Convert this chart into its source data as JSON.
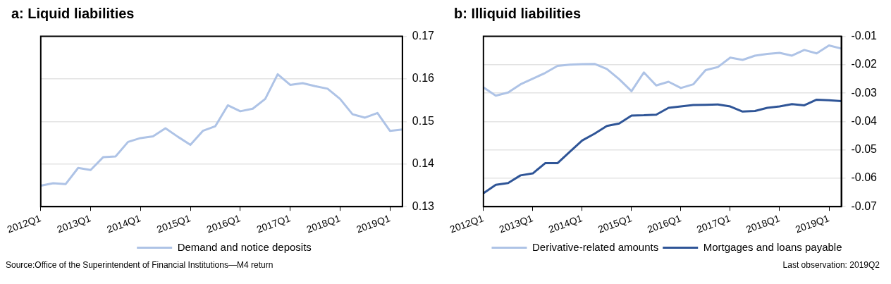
{
  "chart_data": [
    {
      "type": "line",
      "title": "a: Liquid liabilities",
      "categories": [
        "2012Q1",
        null,
        null,
        null,
        "2013Q1",
        null,
        null,
        null,
        "2014Q1",
        null,
        null,
        null,
        "2015Q1",
        null,
        null,
        null,
        "2016Q1",
        null,
        null,
        null,
        "2017Q1",
        null,
        null,
        null,
        "2018Q1",
        null,
        null,
        null,
        "2019Q1",
        null
      ],
      "series": [
        {
          "name": "Demand and notice deposits",
          "color": "#aec3e6",
          "values": [
            0.1349,
            0.1355,
            0.1353,
            0.1391,
            0.1386,
            0.1416,
            0.1418,
            0.1452,
            0.1461,
            0.1465,
            0.1484,
            0.1464,
            0.1445,
            0.1478,
            0.1489,
            0.1538,
            0.1524,
            0.153,
            0.1553,
            0.1611,
            0.1586,
            0.159,
            0.1583,
            0.1577,
            0.1553,
            0.1517,
            0.1509,
            0.152,
            0.1478,
            0.1481
          ]
        }
      ],
      "ylim": [
        0.13,
        0.17
      ],
      "yticks": [
        0.13,
        0.14,
        0.15,
        0.16,
        0.17
      ],
      "grid": "y",
      "legend": "bottom",
      "marker": "none",
      "line_style": "solid",
      "annotations": [
        "Source:Office of the Superintendent of Financial Institutions—M4 return"
      ]
    },
    {
      "type": "line",
      "title": "b: Illiquid liabilities",
      "categories": [
        "2012Q1",
        null,
        null,
        null,
        "2013Q1",
        null,
        null,
        null,
        "2014Q1",
        null,
        null,
        null,
        "2015Q1",
        null,
        null,
        null,
        "2016Q1",
        null,
        null,
        null,
        "2017Q1",
        null,
        null,
        null,
        "2018Q1",
        null,
        null,
        null,
        "2019Q1",
        null
      ],
      "series": [
        {
          "name": "Derivative-related amounts",
          "color": "#aec3e6",
          "values": [
            -0.028,
            -0.0309,
            -0.0298,
            -0.0269,
            -0.0249,
            -0.0229,
            -0.0204,
            -0.02,
            -0.0198,
            -0.0197,
            -0.0215,
            -0.0251,
            -0.0293,
            -0.0227,
            -0.0273,
            -0.026,
            -0.0282,
            -0.0269,
            -0.0219,
            -0.0208,
            -0.0175,
            -0.0183,
            -0.0168,
            -0.0162,
            -0.0158,
            -0.0168,
            -0.0148,
            -0.016,
            -0.0132,
            -0.0143
          ]
        },
        {
          "name": "Mortgages and loans payable",
          "color": "#2f5597",
          "values": [
            -0.0653,
            -0.0623,
            -0.0617,
            -0.059,
            -0.0583,
            -0.0547,
            -0.0547,
            -0.0507,
            -0.0467,
            -0.0443,
            -0.0416,
            -0.0407,
            -0.0379,
            -0.0378,
            -0.0376,
            -0.0352,
            -0.0347,
            -0.0342,
            -0.0341,
            -0.034,
            -0.0347,
            -0.0365,
            -0.0363,
            -0.0352,
            -0.0347,
            -0.0339,
            -0.0343,
            -0.0323,
            -0.0325,
            -0.0328
          ]
        }
      ],
      "ylim": [
        -0.07,
        -0.01
      ],
      "yticks": [
        -0.07,
        -0.06,
        -0.05,
        -0.04,
        -0.03,
        -0.02,
        -0.01
      ],
      "grid": "y",
      "legend": "bottom",
      "marker": "none",
      "line_style": "solid",
      "annotations": [
        "Last observation: 2019Q2"
      ]
    }
  ]
}
